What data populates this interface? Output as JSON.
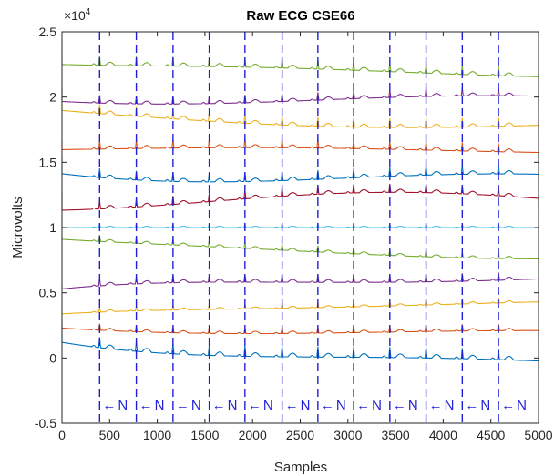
{
  "chart_data": {
    "type": "line",
    "title": "Raw ECG CSE66",
    "xlabel": "Samples",
    "ylabel": "Microvolts",
    "xlim": [
      0,
      5000
    ],
    "ylim": [
      -5000,
      25000
    ],
    "x_ticks": [
      0,
      500,
      1000,
      1500,
      2000,
      2500,
      3000,
      3500,
      4000,
      4500,
      5000
    ],
    "x_tick_labels": [
      "0",
      "500",
      "1000",
      "1500",
      "2000",
      "2500",
      "3000",
      "3500",
      "4000",
      "4500",
      "5000"
    ],
    "y_ticks": [
      -5000,
      0,
      5000,
      10000,
      15000,
      20000,
      25000
    ],
    "y_tick_labels": [
      "-0.5",
      "0",
      "0.5",
      "1",
      "1.5",
      "2",
      "2.5"
    ],
    "y_exponent_label": "×10",
    "y_exponent_power": "4",
    "grid": false,
    "beat_marker_color": "#1f1fd6",
    "beat_positions": [
      395,
      780,
      1165,
      1545,
      1920,
      2310,
      2685,
      3060,
      3440,
      3820,
      4200,
      4580
    ],
    "beat_label_y": -3600,
    "beat_labels": [
      "N",
      "N",
      "N",
      "N",
      "N",
      "N",
      "N",
      "N",
      "N",
      "N",
      "N",
      "N"
    ],
    "beat_arrow": "←",
    "series": [
      {
        "color": "#77ac30",
        "start": 22500,
        "end": 21800,
        "drift": 300,
        "spike": 700
      },
      {
        "color": "#7e2f8e",
        "start": 20000,
        "end": 19700,
        "drift": -400,
        "spike": 600
      },
      {
        "color": "#edb120",
        "start": 18700,
        "end": 17900,
        "drift": 300,
        "spike": 700
      },
      {
        "color": "#d95319",
        "start": 16000,
        "end": 15900,
        "drift": -200,
        "spike": 650
      },
      {
        "color": "#0072bd",
        "start": 14500,
        "end": 13600,
        "drift": 500,
        "spike": 700
      },
      {
        "color": "#a2142f",
        "start": 12000,
        "end": 12000,
        "drift": 700,
        "spike": 650
      },
      {
        "color": "#4dbeee",
        "start": 10000,
        "end": 10000,
        "drift": 0,
        "spike": 300
      },
      {
        "color": "#77ac30",
        "start": 8900,
        "end": 7900,
        "drift": 300,
        "spike": 500
      },
      {
        "color": "#7e2f8e",
        "start": 5000,
        "end": 6200,
        "drift": 300,
        "spike": 600
      },
      {
        "color": "#edb120",
        "start": 3300,
        "end": 4200,
        "drift": 200,
        "spike": 400
      },
      {
        "color": "#d95319",
        "start": 2400,
        "end": 1900,
        "drift": 200,
        "spike": 500
      },
      {
        "color": "#0072bd",
        "start": 1500,
        "end": -400,
        "drift": 300,
        "spike": 800
      }
    ]
  }
}
